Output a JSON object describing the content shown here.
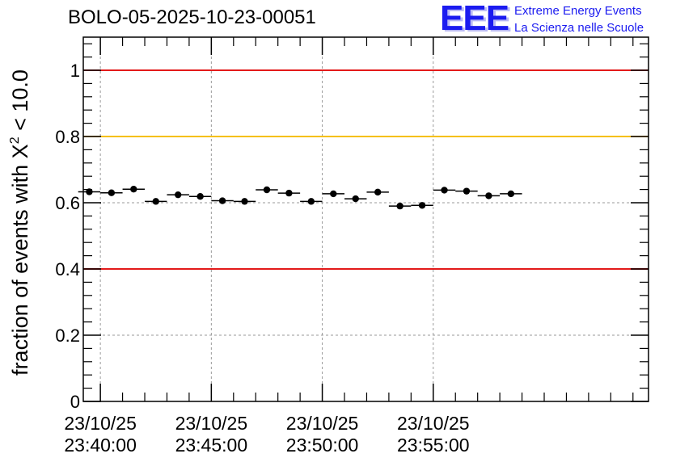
{
  "header": {
    "title": "BOLO-05-2025-10-23-00051"
  },
  "logo": {
    "mark": "EEE",
    "line1": "Extreme Energy Events",
    "line2": "La Scienza nelle Scuole"
  },
  "colors": {
    "red": "#e31a1a",
    "yellow": "#f5c000",
    "marker": "#000000",
    "grid": "#9a9a9a",
    "logo": "#1b1bf0"
  },
  "chart_data": {
    "type": "scatter",
    "title": "BOLO-05-2025-10-23-00051",
    "ylabel_prefix": "fraction of events with ",
    "ylabel_symbol": "X",
    "ylabel_sup": "2",
    "ylabel_suffix": " < 10.0",
    "xlabel": "",
    "ylim": [
      0,
      1.1
    ],
    "xlim_minutes": [
      -0.77,
      24.7
    ],
    "yticks": [
      0,
      0.2,
      0.4,
      0.6,
      0.8,
      1
    ],
    "ytick_labels": [
      "0",
      "0.2",
      "0.4",
      "0.6",
      "0.8",
      "1"
    ],
    "xticks": [
      {
        "minute": 0,
        "date": "23/10/25",
        "time": "23:40:00"
      },
      {
        "minute": 5,
        "date": "23/10/25",
        "time": "23:45:00"
      },
      {
        "minute": 10,
        "date": "23/10/25",
        "time": "23:50:00"
      },
      {
        "minute": 15,
        "date": "23/10/25",
        "time": "23:55:00"
      }
    ],
    "reference_lines": [
      {
        "y": 1.0,
        "color": "red"
      },
      {
        "y": 0.8,
        "color": "yellow"
      },
      {
        "y": 0.4,
        "color": "red"
      }
    ],
    "bin_width_minutes": 1,
    "points": [
      {
        "x": -0.5,
        "y": 0.633
      },
      {
        "x": 0.5,
        "y": 0.63
      },
      {
        "x": 1.5,
        "y": 0.641
      },
      {
        "x": 2.5,
        "y": 0.604
      },
      {
        "x": 3.5,
        "y": 0.624
      },
      {
        "x": 4.5,
        "y": 0.619
      },
      {
        "x": 5.5,
        "y": 0.606
      },
      {
        "x": 6.5,
        "y": 0.604
      },
      {
        "x": 7.5,
        "y": 0.639
      },
      {
        "x": 8.5,
        "y": 0.629
      },
      {
        "x": 9.5,
        "y": 0.604
      },
      {
        "x": 10.5,
        "y": 0.627
      },
      {
        "x": 11.5,
        "y": 0.612
      },
      {
        "x": 12.5,
        "y": 0.632
      },
      {
        "x": 13.5,
        "y": 0.59
      },
      {
        "x": 14.5,
        "y": 0.592
      },
      {
        "x": 15.5,
        "y": 0.638
      },
      {
        "x": 16.5,
        "y": 0.635
      },
      {
        "x": 17.5,
        "y": 0.621
      },
      {
        "x": 18.5,
        "y": 0.627
      }
    ]
  }
}
